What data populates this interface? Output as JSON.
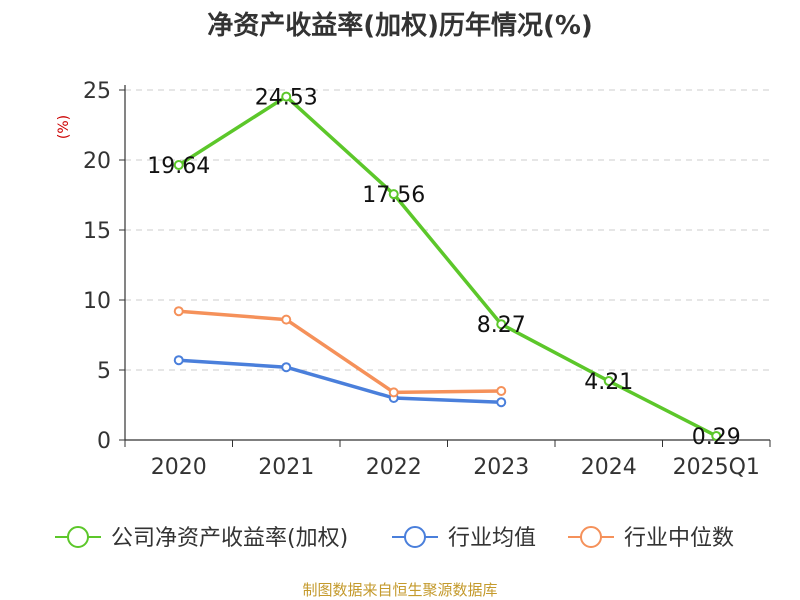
{
  "chart_data": {
    "type": "line",
    "title": "净资产收益率(加权)历年情况(%)",
    "y_unit": "(%)",
    "categories": [
      "2020",
      "2021",
      "2022",
      "2023",
      "2024",
      "2025Q1"
    ],
    "ylim": [
      0,
      25
    ],
    "yticks": [
      0,
      5,
      10,
      15,
      20,
      25
    ],
    "grid": true,
    "legend_position": "bottom",
    "series": [
      {
        "name": "公司净资产收益率(加权)",
        "color": "#5cc72a",
        "values": [
          19.64,
          24.53,
          17.56,
          8.27,
          4.21,
          0.29
        ],
        "labels": [
          "19.64",
          "24.53",
          "17.56",
          "8.27",
          "4.21",
          "0.29"
        ]
      },
      {
        "name": "行业均值",
        "color": "#4a7fdb",
        "values": [
          5.7,
          5.2,
          3.0,
          2.7,
          null,
          null
        ]
      },
      {
        "name": "行业中位数",
        "color": "#f5915a",
        "values": [
          9.2,
          8.6,
          3.4,
          3.5,
          null,
          null
        ]
      }
    ]
  },
  "footer": {
    "source": "制图数据来自恒生聚源数据库"
  }
}
